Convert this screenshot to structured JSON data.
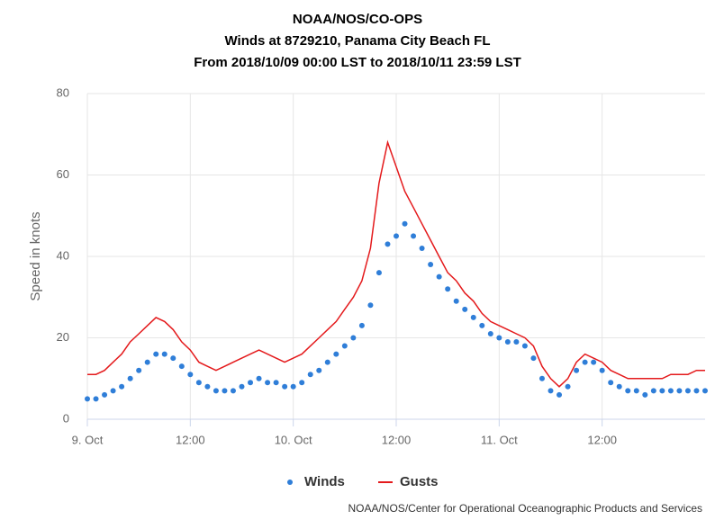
{
  "chart_data": {
    "type": "line",
    "title": "NOAA/NOS/CO-OPS",
    "subtitle": "Winds at 8729210, Panama City Beach FL",
    "subtitle2": "From 2018/10/09 00:00 LST to 2018/10/11 23:59 LST",
    "y_label": "Speed in knots",
    "credits": "NOAA/NOS/Center for Operational Oceanographic Products and Services",
    "x": [
      0,
      1,
      2,
      3,
      4,
      5,
      6,
      7,
      8,
      9,
      10,
      11,
      12,
      13,
      14,
      15,
      16,
      17,
      18,
      19,
      20,
      21,
      22,
      23,
      24,
      25,
      26,
      27,
      28,
      29,
      30,
      31,
      32,
      33,
      34,
      35,
      36,
      37,
      38,
      39,
      40,
      41,
      42,
      43,
      44,
      45,
      46,
      47,
      48,
      49,
      50,
      51,
      52,
      53,
      54,
      55,
      56,
      57,
      58,
      59,
      60,
      61,
      62,
      63,
      64,
      65,
      66,
      67,
      68,
      69,
      70,
      71,
      72
    ],
    "series": [
      {
        "name": "Winds",
        "color": "#2f7ed8",
        "style": "dots",
        "values": [
          5,
          5,
          6,
          7,
          8,
          10,
          12,
          14,
          16,
          16,
          15,
          13,
          11,
          9,
          8,
          7,
          7,
          7,
          8,
          9,
          10,
          9,
          9,
          8,
          8,
          9,
          11,
          12,
          14,
          16,
          18,
          20,
          23,
          28,
          36,
          43,
          45,
          48,
          45,
          42,
          38,
          35,
          32,
          29,
          27,
          25,
          23,
          21,
          20,
          19,
          19,
          18,
          15,
          10,
          7,
          6,
          8,
          12,
          14,
          14,
          12,
          9,
          8,
          7,
          7,
          6,
          7,
          7,
          7,
          7,
          7,
          7,
          7
        ]
      },
      {
        "name": "Gusts",
        "color": "#e41a1c",
        "style": "line",
        "values": [
          11,
          11,
          12,
          14,
          16,
          19,
          21,
          23,
          25,
          24,
          22,
          19,
          17,
          14,
          13,
          12,
          13,
          14,
          15,
          16,
          17,
          16,
          15,
          14,
          15,
          16,
          18,
          20,
          22,
          24,
          27,
          30,
          34,
          42,
          58,
          68,
          62,
          56,
          52,
          48,
          44,
          40,
          36,
          34,
          31,
          29,
          26,
          24,
          23,
          22,
          21,
          20,
          18,
          13,
          10,
          8,
          10,
          14,
          16,
          15,
          14,
          12,
          11,
          10,
          10,
          10,
          10,
          10,
          11,
          11,
          11,
          12,
          12
        ]
      }
    ],
    "xlim": [
      0,
      72
    ],
    "xticks": [
      {
        "value": 0,
        "label": "9. Oct"
      },
      {
        "value": 12,
        "label": "12:00"
      },
      {
        "value": 24,
        "label": "10. Oct"
      },
      {
        "value": 36,
        "label": "12:00"
      },
      {
        "value": 48,
        "label": "11. Oct"
      },
      {
        "value": 60,
        "label": "12:00"
      }
    ],
    "ylim": [
      0,
      80
    ],
    "yticks": [
      0,
      20,
      40,
      60,
      80
    ],
    "grid": true
  }
}
